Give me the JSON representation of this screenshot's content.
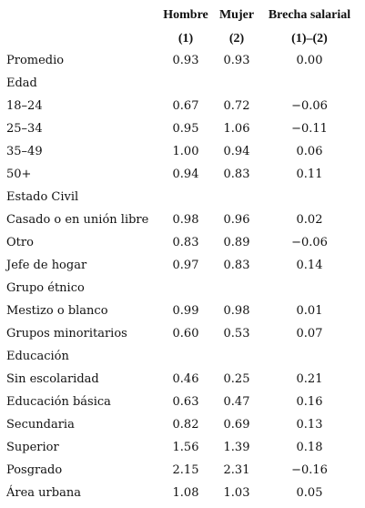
{
  "table": {
    "header": [
      [
        "Hombre",
        "Mujer",
        "Brecha salarial"
      ],
      [
        "(1)",
        "(2)",
        "(1)–(2)"
      ]
    ],
    "rows": [
      [
        "Promedio",
        "0.93",
        "0.93",
        "0.00"
      ],
      [
        "Edad"
      ],
      [
        "18–24",
        "0.67",
        "0.72",
        "−0.06"
      ],
      [
        "25–34",
        "0.95",
        "1.06",
        "−0.11"
      ],
      [
        "35–49",
        "1.00",
        "0.94",
        "0.06"
      ],
      [
        "50+",
        "0.94",
        "0.83",
        "0.11"
      ],
      [
        "Estado Civil"
      ],
      [
        "Casado o en unión libre",
        "0.98",
        "0.96",
        "0.02"
      ],
      [
        "Otro",
        "0.83",
        "0.89",
        "−0.06"
      ],
      [
        "Jefe de hogar",
        "0.97",
        "0.83",
        "0.14"
      ],
      [
        "Grupo étnico"
      ],
      [
        "Mestizo o blanco",
        "0.99",
        "0.98",
        "0.01"
      ],
      [
        "Grupos minoritarios",
        "0.60",
        "0.53",
        "0.07"
      ],
      [
        "Educación"
      ],
      [
        "Sin escolaridad",
        "0.46",
        "0.25",
        "0.21"
      ],
      [
        "Educación básica",
        "0.63",
        "0.47",
        "0.16"
      ],
      [
        "Secundaria",
        "0.82",
        "0.69",
        "0.13"
      ],
      [
        "Superior",
        "1.56",
        "1.39",
        "0.18"
      ],
      [
        "Posgrado",
        "2.15",
        "2.31",
        "−0.16"
      ],
      [
        "Área urbana",
        "1.08",
        "1.03",
        "0.05"
      ]
    ]
  }
}
